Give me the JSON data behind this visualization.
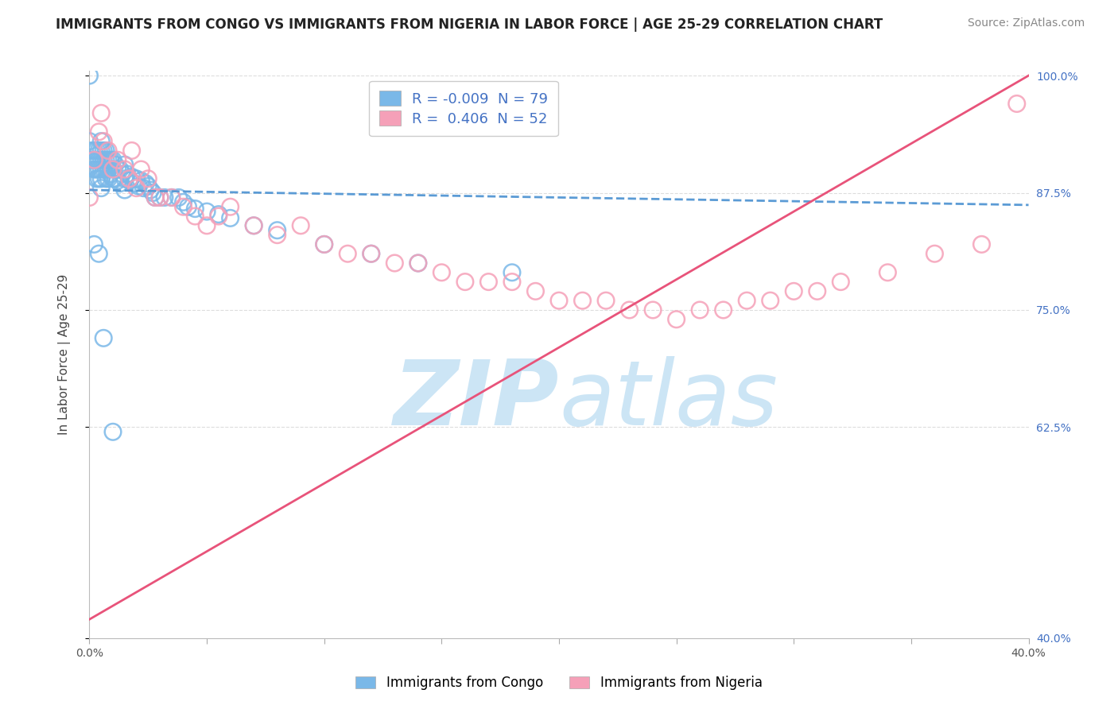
{
  "title": "IMMIGRANTS FROM CONGO VS IMMIGRANTS FROM NIGERIA IN LABOR FORCE | AGE 25-29 CORRELATION CHART",
  "source": "Source: ZipAtlas.com",
  "ylabel": "In Labor Force | Age 25-29",
  "xlim": [
    0.0,
    0.4
  ],
  "ylim": [
    0.4,
    1.005
  ],
  "xticks": [
    0.0,
    0.05,
    0.1,
    0.15,
    0.2,
    0.25,
    0.3,
    0.35,
    0.4
  ],
  "yticks": [
    0.4,
    0.625,
    0.75,
    0.875,
    1.0
  ],
  "congo_color": "#7ab8e8",
  "nigeria_color": "#f5a0b8",
  "congo_line_color": "#5b9bd5",
  "nigeria_line_color": "#e8537a",
  "congo_R": -0.009,
  "congo_N": 79,
  "nigeria_R": 0.406,
  "nigeria_N": 52,
  "title_fontsize": 12,
  "source_fontsize": 10,
  "axis_label_fontsize": 11,
  "tick_fontsize": 10,
  "legend_fontsize": 13,
  "watermark_color": "#cce5f5",
  "grid_color": "#dddddd",
  "background_color": "#ffffff",
  "legend_text_color": "#333333",
  "legend_value_color": "#4472c4",
  "right_tick_color": "#4472c4",
  "congo_scatter_x": [
    0.0,
    0.0,
    0.001,
    0.001,
    0.002,
    0.002,
    0.002,
    0.003,
    0.003,
    0.003,
    0.003,
    0.004,
    0.004,
    0.004,
    0.004,
    0.005,
    0.005,
    0.005,
    0.005,
    0.005,
    0.005,
    0.006,
    0.006,
    0.006,
    0.007,
    0.007,
    0.007,
    0.007,
    0.008,
    0.008,
    0.008,
    0.009,
    0.009,
    0.01,
    0.01,
    0.01,
    0.011,
    0.011,
    0.012,
    0.012,
    0.013,
    0.013,
    0.014,
    0.015,
    0.015,
    0.015,
    0.016,
    0.017,
    0.018,
    0.019,
    0.02,
    0.021,
    0.022,
    0.023,
    0.024,
    0.025,
    0.026,
    0.027,
    0.028,
    0.03,
    0.032,
    0.035,
    0.038,
    0.04,
    0.042,
    0.045,
    0.05,
    0.055,
    0.06,
    0.07,
    0.08,
    0.1,
    0.12,
    0.14,
    0.18,
    0.002,
    0.004,
    0.006,
    0.01
  ],
  "congo_scatter_y": [
    1.0,
    0.93,
    0.92,
    0.91,
    0.92,
    0.91,
    0.9,
    0.92,
    0.91,
    0.9,
    0.89,
    0.92,
    0.91,
    0.9,
    0.89,
    0.93,
    0.92,
    0.91,
    0.9,
    0.89,
    0.88,
    0.92,
    0.91,
    0.9,
    0.92,
    0.91,
    0.9,
    0.89,
    0.91,
    0.9,
    0.89,
    0.91,
    0.895,
    0.91,
    0.9,
    0.89,
    0.905,
    0.89,
    0.9,
    0.888,
    0.9,
    0.885,
    0.895,
    0.905,
    0.89,
    0.878,
    0.895,
    0.888,
    0.892,
    0.885,
    0.89,
    0.882,
    0.888,
    0.88,
    0.885,
    0.882,
    0.878,
    0.875,
    0.87,
    0.87,
    0.87,
    0.87,
    0.87,
    0.865,
    0.86,
    0.858,
    0.855,
    0.852,
    0.848,
    0.84,
    0.835,
    0.82,
    0.81,
    0.8,
    0.79,
    0.82,
    0.81,
    0.72,
    0.62
  ],
  "nigeria_scatter_x": [
    0.0,
    0.002,
    0.004,
    0.005,
    0.006,
    0.008,
    0.01,
    0.012,
    0.015,
    0.017,
    0.018,
    0.02,
    0.022,
    0.025,
    0.028,
    0.03,
    0.035,
    0.04,
    0.045,
    0.05,
    0.055,
    0.06,
    0.07,
    0.08,
    0.09,
    0.1,
    0.11,
    0.12,
    0.13,
    0.14,
    0.15,
    0.16,
    0.17,
    0.18,
    0.19,
    0.2,
    0.21,
    0.22,
    0.23,
    0.24,
    0.25,
    0.26,
    0.27,
    0.28,
    0.29,
    0.3,
    0.31,
    0.32,
    0.34,
    0.36,
    0.38,
    0.395
  ],
  "nigeria_scatter_y": [
    0.87,
    0.91,
    0.94,
    0.96,
    0.93,
    0.92,
    0.9,
    0.91,
    0.9,
    0.89,
    0.92,
    0.88,
    0.9,
    0.89,
    0.87,
    0.87,
    0.87,
    0.86,
    0.85,
    0.84,
    0.85,
    0.86,
    0.84,
    0.83,
    0.84,
    0.82,
    0.81,
    0.81,
    0.8,
    0.8,
    0.79,
    0.78,
    0.78,
    0.78,
    0.77,
    0.76,
    0.76,
    0.76,
    0.75,
    0.75,
    0.74,
    0.75,
    0.75,
    0.76,
    0.76,
    0.77,
    0.77,
    0.78,
    0.79,
    0.81,
    0.82,
    0.97
  ],
  "congo_trend_x": [
    0.0,
    0.4
  ],
  "congo_trend_y": [
    0.878,
    0.862
  ],
  "nigeria_trend_x": [
    0.0,
    0.4
  ],
  "nigeria_trend_y": [
    0.42,
    1.0
  ]
}
